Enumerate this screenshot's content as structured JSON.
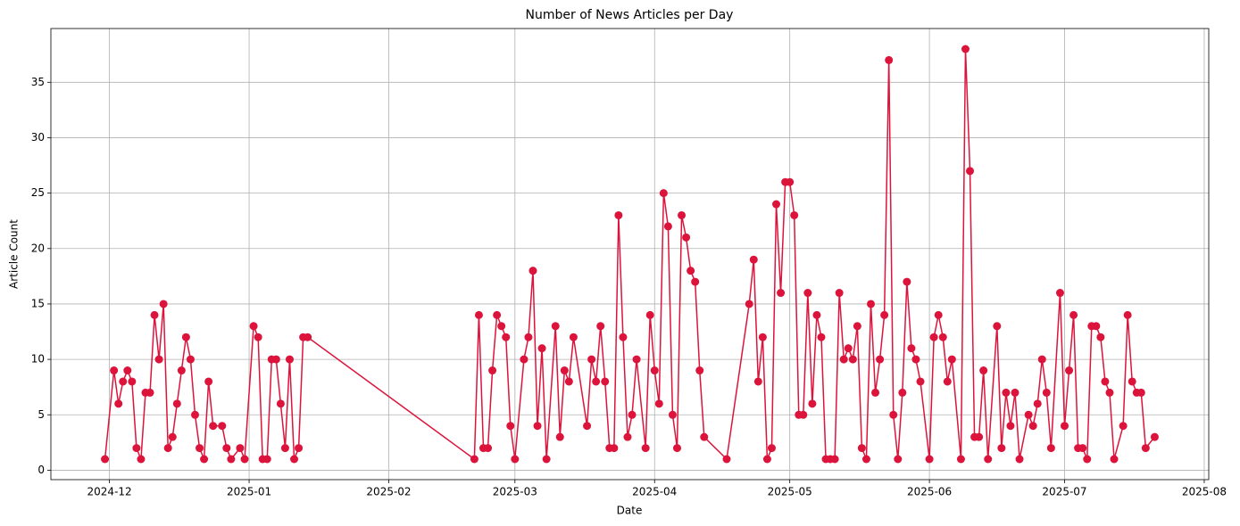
{
  "chart_data": {
    "type": "line",
    "title": "Number of News Articles per Day",
    "x_label": "Date",
    "y_label": "Article Count",
    "x": [
      "2024-11-30",
      "2024-12-02",
      "2024-12-03",
      "2024-12-04",
      "2024-12-05",
      "2024-12-06",
      "2024-12-07",
      "2024-12-08",
      "2024-12-09",
      "2024-12-10",
      "2024-12-11",
      "2024-12-12",
      "2024-12-13",
      "2024-12-14",
      "2024-12-15",
      "2024-12-16",
      "2024-12-17",
      "2024-12-18",
      "2024-12-19",
      "2024-12-20",
      "2024-12-21",
      "2024-12-22",
      "2024-12-23",
      "2024-12-24",
      "2024-12-26",
      "2024-12-27",
      "2024-12-28",
      "2024-12-30",
      "2024-12-31",
      "2025-01-02",
      "2025-01-03",
      "2025-01-04",
      "2025-01-05",
      "2025-01-06",
      "2025-01-07",
      "2025-01-08",
      "2025-01-09",
      "2025-01-10",
      "2025-01-11",
      "2025-01-12",
      "2025-01-13",
      "2025-01-14",
      "2025-02-20",
      "2025-02-21",
      "2025-02-22",
      "2025-02-23",
      "2025-02-24",
      "2025-02-25",
      "2025-02-26",
      "2025-02-27",
      "2025-02-28",
      "2025-03-01",
      "2025-03-03",
      "2025-03-04",
      "2025-03-05",
      "2025-03-06",
      "2025-03-07",
      "2025-03-08",
      "2025-03-10",
      "2025-03-11",
      "2025-03-12",
      "2025-03-13",
      "2025-03-14",
      "2025-03-17",
      "2025-03-18",
      "2025-03-19",
      "2025-03-20",
      "2025-03-21",
      "2025-03-22",
      "2025-03-23",
      "2025-03-24",
      "2025-03-25",
      "2025-03-26",
      "2025-03-27",
      "2025-03-28",
      "2025-03-30",
      "2025-03-31",
      "2025-04-01",
      "2025-04-02",
      "2025-04-03",
      "2025-04-04",
      "2025-04-05",
      "2025-04-06",
      "2025-04-07",
      "2025-04-08",
      "2025-04-09",
      "2025-04-10",
      "2025-04-11",
      "2025-04-12",
      "2025-04-17",
      "2025-04-22",
      "2025-04-23",
      "2025-04-24",
      "2025-04-25",
      "2025-04-26",
      "2025-04-27",
      "2025-04-28",
      "2025-04-29",
      "2025-04-30",
      "2025-05-01",
      "2025-05-02",
      "2025-05-03",
      "2025-05-04",
      "2025-05-05",
      "2025-05-06",
      "2025-05-07",
      "2025-05-08",
      "2025-05-09",
      "2025-05-10",
      "2025-05-11",
      "2025-05-12",
      "2025-05-13",
      "2025-05-14",
      "2025-05-15",
      "2025-05-16",
      "2025-05-17",
      "2025-05-18",
      "2025-05-19",
      "2025-05-20",
      "2025-05-21",
      "2025-05-22",
      "2025-05-23",
      "2025-05-24",
      "2025-05-25",
      "2025-05-26",
      "2025-05-27",
      "2025-05-28",
      "2025-05-29",
      "2025-05-30",
      "2025-06-01",
      "2025-06-02",
      "2025-06-03",
      "2025-06-04",
      "2025-06-05",
      "2025-06-06",
      "2025-06-08",
      "2025-06-09",
      "2025-06-10",
      "2025-06-11",
      "2025-06-12",
      "2025-06-13",
      "2025-06-14",
      "2025-06-16",
      "2025-06-17",
      "2025-06-18",
      "2025-06-19",
      "2025-06-20",
      "2025-06-21",
      "2025-06-23",
      "2025-06-24",
      "2025-06-25",
      "2025-06-26",
      "2025-06-27",
      "2025-06-28",
      "2025-06-30",
      "2025-07-01",
      "2025-07-02",
      "2025-07-03",
      "2025-07-04",
      "2025-07-05",
      "2025-07-06",
      "2025-07-07",
      "2025-07-08",
      "2025-07-09",
      "2025-07-10",
      "2025-07-11",
      "2025-07-12",
      "2025-07-14",
      "2025-07-15",
      "2025-07-16",
      "2025-07-17",
      "2025-07-18",
      "2025-07-19",
      "2025-07-21"
    ],
    "series": [
      {
        "color": "#dc143c",
        "values": [
          1,
          9,
          6,
          8,
          9,
          8,
          2,
          1,
          7,
          7,
          14,
          10,
          15,
          2,
          3,
          6,
          9,
          12,
          10,
          5,
          2,
          1,
          8,
          4,
          4,
          2,
          1,
          2,
          1,
          13,
          12,
          1,
          1,
          10,
          10,
          6,
          2,
          10,
          1,
          2,
          12,
          12,
          1,
          14,
          2,
          2,
          9,
          14,
          13,
          12,
          4,
          1,
          10,
          12,
          18,
          4,
          11,
          1,
          13,
          3,
          9,
          8,
          12,
          4,
          10,
          8,
          13,
          8,
          2,
          2,
          23,
          12,
          3,
          5,
          10,
          2,
          14,
          9,
          6,
          25,
          22,
          5,
          2,
          23,
          21,
          18,
          17,
          9,
          3,
          1,
          15,
          19,
          8,
          12,
          1,
          2,
          24,
          16,
          26,
          26,
          23,
          5,
          5,
          16,
          6,
          14,
          12,
          1,
          1,
          1,
          16,
          10,
          11,
          10,
          13,
          2,
          1,
          15,
          7,
          10,
          14,
          37,
          5,
          1,
          7,
          17,
          11,
          10,
          8,
          1,
          12,
          14,
          12,
          8,
          10,
          1,
          38,
          27,
          3,
          3,
          9,
          1,
          13,
          2,
          7,
          4,
          7,
          1,
          5,
          4,
          6,
          10,
          7,
          2,
          16,
          4,
          9,
          14,
          2,
          2,
          1,
          13,
          13,
          12,
          8,
          7,
          1,
          4,
          14,
          8,
          7,
          7,
          2,
          3
        ]
      }
    ],
    "xlim": [
      "2024-11-18",
      "2025-08-02"
    ],
    "xticks": [
      {
        "value": "2024-12-01",
        "label": "2024-12"
      },
      {
        "value": "2025-01-01",
        "label": "2025-01"
      },
      {
        "value": "2025-02-01",
        "label": "2025-02"
      },
      {
        "value": "2025-03-01",
        "label": "2025-03"
      },
      {
        "value": "2025-04-01",
        "label": "2025-04"
      },
      {
        "value": "2025-05-01",
        "label": "2025-05"
      },
      {
        "value": "2025-06-01",
        "label": "2025-06"
      },
      {
        "value": "2025-07-01",
        "label": "2025-07"
      },
      {
        "value": "2025-08-01",
        "label": "2025-08"
      }
    ],
    "ylim": [
      -0.85,
      39.85
    ],
    "yticks": [
      0,
      5,
      10,
      15,
      20,
      25,
      30,
      35
    ],
    "grid": true
  }
}
